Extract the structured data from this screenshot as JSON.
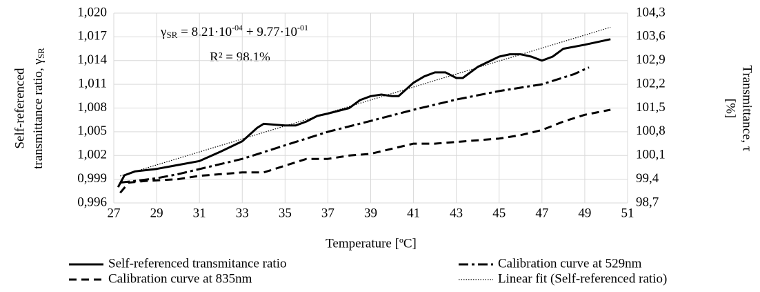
{
  "chart_data": {
    "type": "line",
    "x_label": "Temperature [ºC]",
    "y_label": [
      "Self-referenced",
      "transmittance ratio, γ"
    ],
    "y_label_sub": "SR",
    "y2_label": [
      "Transmittance, τ",
      "[%]"
    ],
    "equation": {
      "lhs": "γ",
      "lhs_sub": "SR",
      "part1": " = 8.21·10",
      "exp1": "-04",
      "part2": " + 9.77·10",
      "exp2": "-01"
    },
    "r_squared": "R² = 98.1%",
    "xlim": [
      27,
      51
    ],
    "xticks": [
      27,
      29,
      31,
      33,
      35,
      37,
      39,
      41,
      43,
      45,
      47,
      49,
      51
    ],
    "ylim": [
      0.996,
      1.02
    ],
    "yticks": [
      {
        "value": 0.996,
        "label": "0,996"
      },
      {
        "value": 0.999,
        "label": "0,999"
      },
      {
        "value": 1.002,
        "label": "1,002"
      },
      {
        "value": 1.005,
        "label": "1,005"
      },
      {
        "value": 1.008,
        "label": "1,008"
      },
      {
        "value": 1.011,
        "label": "1,011"
      },
      {
        "value": 1.014,
        "label": "1,014"
      },
      {
        "value": 1.017,
        "label": "1,017"
      },
      {
        "value": 1.02,
        "label": "1,020"
      }
    ],
    "y2lim": [
      98.7,
      104.3
    ],
    "y2ticks": [
      {
        "value": 98.7,
        "label": "98,7"
      },
      {
        "value": 99.4,
        "label": "99,4"
      },
      {
        "value": 100.1,
        "label": "100,1"
      },
      {
        "value": 100.8,
        "label": "100,8"
      },
      {
        "value": 101.5,
        "label": "101,5"
      },
      {
        "value": 102.2,
        "label": "102,2"
      },
      {
        "value": 102.9,
        "label": "102,9"
      },
      {
        "value": 103.6,
        "label": "103,6"
      },
      {
        "value": 104.3,
        "label": "104,3"
      }
    ],
    "grid": true,
    "series": [
      {
        "name": "Self-referenced transmitance ratio",
        "color": "#000000",
        "style": "solid",
        "x": [
          27.2,
          27.5,
          28,
          29,
          30,
          31,
          32,
          33,
          33.7,
          34,
          35,
          35.5,
          36,
          36.5,
          37,
          38,
          38.5,
          39,
          39.5,
          40,
          40.3,
          41,
          41.5,
          42,
          42.5,
          43,
          43.3,
          44,
          45,
          45.5,
          46,
          46.5,
          47,
          47.5,
          48,
          49,
          50.2
        ],
        "values": [
          0.998,
          0.9995,
          1.0,
          1.0003,
          1.0008,
          1.0013,
          1.0025,
          1.0038,
          1.0055,
          1.006,
          1.0058,
          1.0058,
          1.0063,
          1.007,
          1.0073,
          1.008,
          1.009,
          1.0095,
          1.0097,
          1.0095,
          1.0095,
          1.0112,
          1.012,
          1.0125,
          1.0125,
          1.0118,
          1.0118,
          1.0132,
          1.0145,
          1.0148,
          1.0148,
          1.0145,
          1.014,
          1.0145,
          1.0155,
          1.016,
          1.0167
        ]
      },
      {
        "name": "Calibration curve at 529nm",
        "color": "#000000",
        "style": "dashdot",
        "axis": "y2",
        "x": [
          27.3,
          28,
          29,
          30,
          31,
          33,
          35,
          37,
          39,
          41,
          43,
          45,
          47,
          48.5,
          49.2
        ],
        "values": [
          99.3,
          99.35,
          99.43,
          99.55,
          99.7,
          100.0,
          100.4,
          100.8,
          101.12,
          101.45,
          101.75,
          102.0,
          102.2,
          102.5,
          102.7
        ]
      },
      {
        "name": "Calibration curve at 835nm",
        "color": "#000000",
        "style": "dash",
        "axis": "y2",
        "x": [
          27.3,
          27.7,
          28.5,
          30,
          31,
          32,
          33,
          34,
          35,
          36,
          37,
          38,
          39,
          40,
          41,
          42,
          43,
          44,
          45,
          46,
          47,
          48,
          49,
          50.2
        ],
        "values": [
          99.0,
          99.3,
          99.35,
          99.4,
          99.5,
          99.55,
          99.6,
          99.6,
          99.8,
          100.0,
          100.0,
          100.1,
          100.15,
          100.3,
          100.45,
          100.45,
          100.5,
          100.55,
          100.6,
          100.7,
          100.85,
          101.1,
          101.3,
          101.45
        ]
      },
      {
        "name": "Linear fit (Self-referenced ratio)",
        "color": "#000000",
        "style": "dot",
        "x": [
          27.3,
          50.2
        ],
        "values": [
          0.99941,
          1.01821
        ]
      }
    ]
  }
}
